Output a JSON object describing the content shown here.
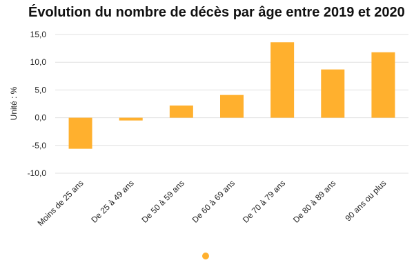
{
  "chart_data": {
    "type": "bar",
    "title": "Évolution du nombre de décès par âge entre 2019 et 2020",
    "ylabel": "Unité : %",
    "xlabel": "",
    "categories": [
      "Moins de 25 ans",
      "De 25 à 49 ans",
      "De 50 à 59 ans",
      "De 60 à 69 ans",
      "De 70 à 79 ans",
      "De 80 à 89 ans",
      "90 ans ou plus"
    ],
    "series": [
      {
        "values": [
          -5.6,
          -0.5,
          2.2,
          4.1,
          13.6,
          8.7,
          11.8
        ]
      }
    ],
    "ylim": [
      -10,
      15
    ],
    "yticks": [
      "15,0",
      "10,0",
      "5,0",
      "0,0",
      "-5,0",
      "-10,0"
    ],
    "grid": true,
    "legend": "bottom",
    "colors": {
      "bar": "#ffb02e",
      "grid": "#e0e0e0",
      "text": "#222222"
    }
  }
}
